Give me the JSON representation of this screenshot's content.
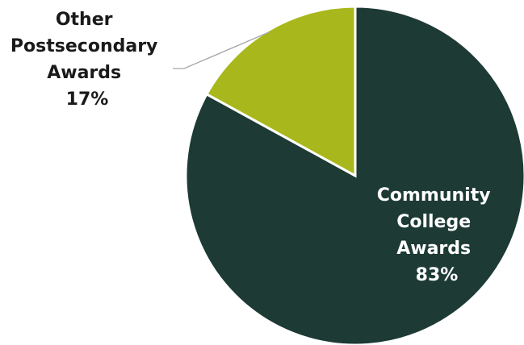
{
  "chart_data": {
    "type": "pie",
    "slices": [
      {
        "name": "Community College Awards",
        "value": 83,
        "label_lines": [
          "Community",
          "College",
          "Awards",
          "83%"
        ],
        "color": "#1d3a34",
        "label_color": "#ffffff"
      },
      {
        "name": "Other Postsecondary Awards",
        "value": 17,
        "label_lines": [
          "Other",
          "Postsecondary",
          "Awards",
          "17%"
        ],
        "color": "#a8b81c",
        "label_color": "#1a1a1a"
      }
    ],
    "title": "",
    "legend": "none",
    "slice_border_color": "#ffffff"
  }
}
